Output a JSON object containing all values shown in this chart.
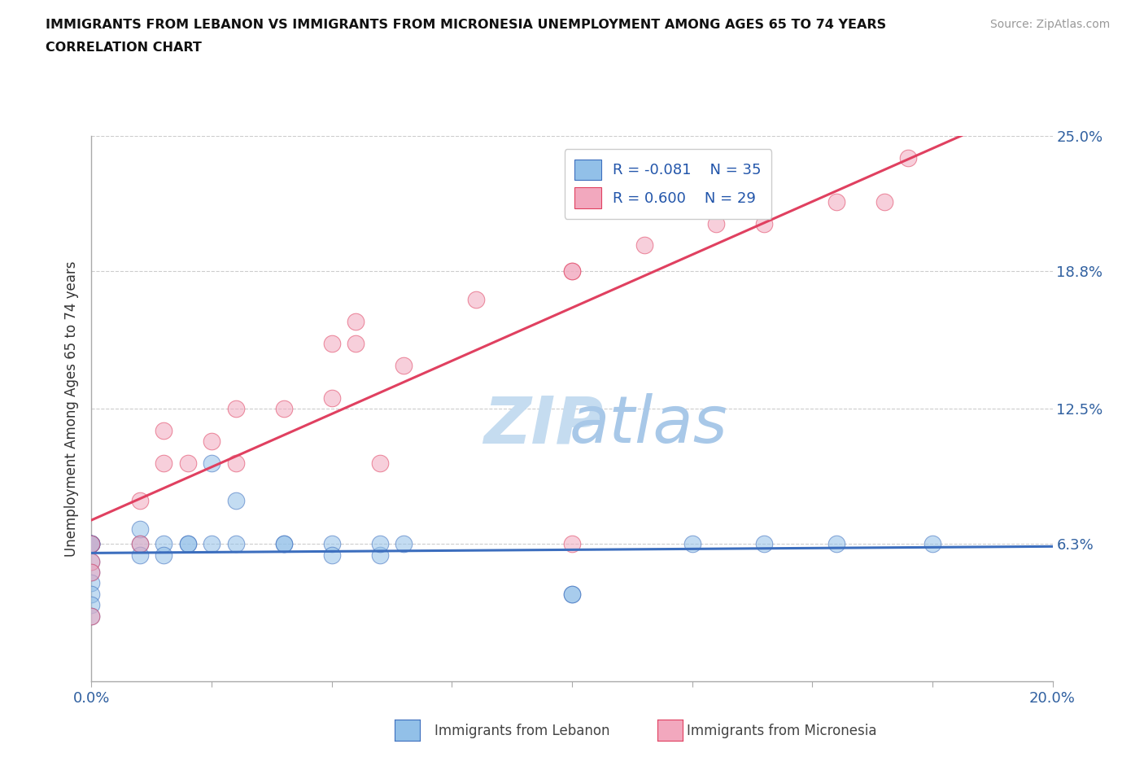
{
  "title_line1": "IMMIGRANTS FROM LEBANON VS IMMIGRANTS FROM MICRONESIA UNEMPLOYMENT AMONG AGES 65 TO 74 YEARS",
  "title_line2": "CORRELATION CHART",
  "source_text": "Source: ZipAtlas.com",
  "ylabel": "Unemployment Among Ages 65 to 74 years",
  "xlim": [
    0.0,
    0.2
  ],
  "ylim": [
    0.0,
    0.25
  ],
  "ytick_positions": [
    0.0,
    0.063,
    0.125,
    0.188,
    0.25
  ],
  "ytick_labels": [
    "",
    "6.3%",
    "12.5%",
    "18.8%",
    "25.0%"
  ],
  "xtick_positions": [
    0.0,
    0.025,
    0.05,
    0.075,
    0.1,
    0.125,
    0.15,
    0.175,
    0.2
  ],
  "legend_r1": "R = -0.081",
  "legend_n1": "N = 35",
  "legend_r2": "R = 0.600",
  "legend_n2": "N = 29",
  "color_lebanon": "#92C0E8",
  "color_micronesia": "#F2A8BE",
  "line_color_lebanon": "#3C6EBE",
  "line_color_micronesia": "#E04060",
  "watermark_zip": "ZIP",
  "watermark_atlas": "atlas",
  "lebanon_x": [
    0.0,
    0.0,
    0.0,
    0.0,
    0.0,
    0.0,
    0.0,
    0.0,
    0.0,
    0.0,
    0.0,
    0.01,
    0.01,
    0.01,
    0.015,
    0.015,
    0.02,
    0.02,
    0.025,
    0.025,
    0.03,
    0.03,
    0.04,
    0.04,
    0.05,
    0.05,
    0.06,
    0.06,
    0.065,
    0.1,
    0.1,
    0.125,
    0.14,
    0.155,
    0.175
  ],
  "lebanon_y": [
    0.063,
    0.063,
    0.063,
    0.063,
    0.063,
    0.055,
    0.05,
    0.045,
    0.04,
    0.035,
    0.03,
    0.063,
    0.07,
    0.058,
    0.063,
    0.058,
    0.063,
    0.063,
    0.1,
    0.063,
    0.083,
    0.063,
    0.063,
    0.063,
    0.063,
    0.058,
    0.058,
    0.063,
    0.063,
    0.04,
    0.04,
    0.063,
    0.063,
    0.063,
    0.063
  ],
  "micronesia_x": [
    0.0,
    0.0,
    0.0,
    0.0,
    0.01,
    0.01,
    0.015,
    0.015,
    0.02,
    0.025,
    0.03,
    0.03,
    0.04,
    0.05,
    0.05,
    0.06,
    0.065,
    0.08,
    0.1,
    0.1,
    0.115,
    0.13,
    0.14,
    0.155,
    0.165,
    0.17,
    0.1,
    0.055,
    0.055
  ],
  "micronesia_y": [
    0.063,
    0.055,
    0.05,
    0.03,
    0.083,
    0.063,
    0.115,
    0.1,
    0.1,
    0.11,
    0.125,
    0.1,
    0.125,
    0.155,
    0.13,
    0.1,
    0.145,
    0.175,
    0.188,
    0.188,
    0.2,
    0.21,
    0.21,
    0.22,
    0.22,
    0.24,
    0.063,
    0.165,
    0.155
  ],
  "background_color": "#FFFFFF",
  "grid_color": "#CCCCCC"
}
